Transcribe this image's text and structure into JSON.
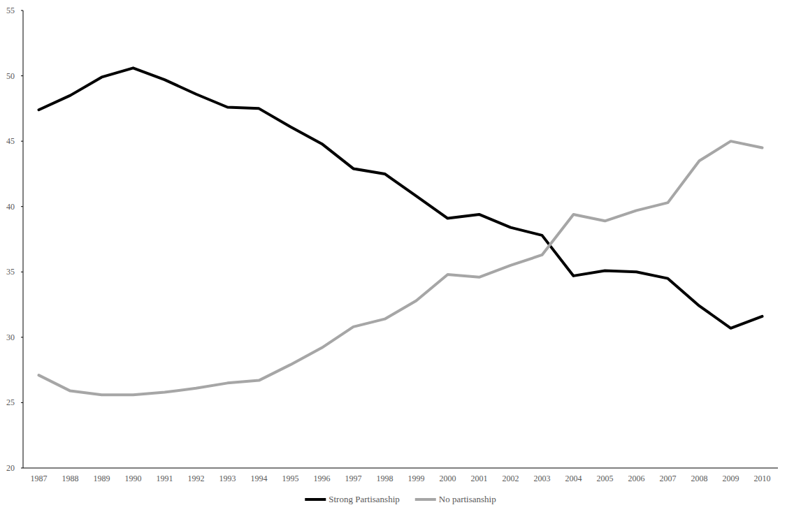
{
  "chart_data": {
    "type": "line",
    "categories": [
      "1987",
      "1988",
      "1989",
      "1990",
      "1991",
      "1992",
      "1993",
      "1994",
      "1995",
      "1996",
      "1997",
      "1998",
      "1999",
      "2000",
      "2001",
      "2002",
      "2003",
      "2004",
      "2005",
      "2006",
      "2007",
      "2008",
      "2009",
      "2010"
    ],
    "series": [
      {
        "name": "Strong Partisanship",
        "color": "#000000",
        "values": [
          47.4,
          48.5,
          49.9,
          50.6,
          49.7,
          48.6,
          47.6,
          47.5,
          46.1,
          44.8,
          42.9,
          42.5,
          40.8,
          39.1,
          39.4,
          38.4,
          37.8,
          34.7,
          35.1,
          35.0,
          34.5,
          32.4,
          30.7,
          31.6
        ]
      },
      {
        "name": "No partisanship",
        "color": "#a6a6a6",
        "values": [
          27.1,
          25.9,
          25.6,
          25.6,
          25.8,
          26.1,
          26.5,
          26.7,
          27.9,
          29.2,
          30.8,
          31.4,
          32.8,
          34.8,
          34.6,
          35.5,
          36.3,
          39.4,
          38.9,
          39.7,
          40.3,
          43.5,
          45.0,
          44.5
        ]
      }
    ],
    "ylim": [
      20,
      55
    ],
    "yticks": [
      20,
      25,
      30,
      35,
      40,
      45,
      50,
      55
    ],
    "grid": false,
    "legend": "bottom"
  }
}
